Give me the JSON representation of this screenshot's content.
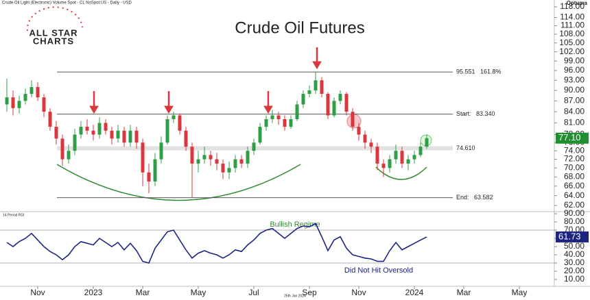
{
  "chart_data": {
    "type": "candlestick",
    "title": "Crude Oil Futures",
    "subtitle": "Crude Oil Light (Electronic) Volume Spot - CL NoSpot:US - Daily - USD",
    "logo": [
      "ALL STAR",
      "CHARTS"
    ],
    "brand": "Optuma",
    "footer": "26th Jan 2024",
    "categories": [
      null,
      null,
      null,
      null,
      null,
      "Nov",
      null,
      null,
      null,
      null,
      null,
      null,
      null,
      null,
      "2023",
      null,
      null,
      null,
      null,
      null,
      null,
      null,
      "Mar",
      null,
      null,
      null,
      null,
      null,
      null,
      null,
      null,
      "May",
      null,
      null,
      null,
      null,
      null,
      null,
      null,
      null,
      "Jul",
      null,
      null,
      null,
      null,
      null,
      null,
      null,
      null,
      "Sep",
      null,
      null,
      null,
      null,
      null,
      null,
      null,
      "Nov",
      null,
      null,
      null,
      null,
      null,
      null,
      null,
      null,
      "2024",
      null,
      null,
      null,
      null,
      null,
      null,
      null,
      "Mar",
      null,
      null,
      null,
      null,
      null,
      null,
      null,
      null,
      "May",
      null,
      null,
      null,
      null
    ],
    "open": [
      86,
      88,
      85,
      87,
      89,
      91,
      88,
      84,
      80,
      77,
      72,
      74,
      78,
      80,
      79,
      78,
      81,
      79,
      77,
      79,
      76,
      79,
      76,
      69,
      67,
      72,
      76,
      82,
      83,
      79,
      75,
      71,
      72,
      73,
      72,
      71,
      69,
      70,
      72,
      71,
      74,
      76,
      80,
      82,
      83,
      82,
      80,
      82,
      86,
      89,
      90,
      93,
      89,
      83,
      87,
      89,
      84,
      80,
      78,
      76,
      75,
      71,
      70,
      72,
      74,
      71,
      72,
      73,
      75,
      null,
      null,
      null,
      null,
      null,
      null,
      null,
      null,
      null,
      null,
      null,
      null,
      null,
      null,
      null,
      null,
      null,
      null,
      null
    ],
    "high": [
      93.5,
      90,
      88.5,
      90.5,
      93,
      92.5,
      89,
      85,
      81.5,
      78,
      75.5,
      79.5,
      81.5,
      82,
      80.5,
      82.5,
      82,
      80,
      80.5,
      80,
      80.5,
      80,
      77,
      71,
      73.5,
      77.5,
      83,
      84,
      83.5,
      80,
      76,
      74,
      75,
      74,
      73.5,
      72,
      71.5,
      73,
      73,
      75,
      77,
      81,
      83,
      84.5,
      84,
      83,
      83,
      87,
      90,
      91.5,
      95.5,
      94,
      89.5,
      88,
      90,
      89.5,
      85,
      81,
      79,
      77,
      76,
      72,
      73,
      75.5,
      75,
      73,
      74,
      76,
      78,
      null,
      null,
      null,
      null,
      null,
      null,
      null,
      null,
      null,
      null,
      null,
      null,
      null,
      null,
      null,
      null,
      null,
      null,
      null
    ],
    "low": [
      84,
      83,
      83.5,
      86,
      88,
      87,
      82.5,
      79,
      75.5,
      70.5,
      71,
      73,
      77,
      78,
      76.5,
      77,
      78,
      75.5,
      76,
      75,
      75,
      74.5,
      66,
      64.5,
      66,
      71,
      75.5,
      81,
      78,
      74,
      63.6,
      69,
      71,
      70.5,
      69.5,
      67.5,
      67.5,
      69,
      70,
      70,
      73,
      75.5,
      79,
      81,
      80.5,
      79,
      79.5,
      81.5,
      85,
      88,
      89,
      88,
      82,
      82.5,
      86,
      83,
      79,
      76.5,
      74.5,
      73.5,
      69.5,
      68,
      69,
      71,
      70,
      69.5,
      71,
      72.5,
      74.5,
      null,
      null,
      null,
      null,
      null,
      null,
      null,
      null,
      null,
      null,
      null,
      null,
      null,
      null,
      null,
      null,
      null,
      null,
      null
    ],
    "close": [
      88,
      85,
      87,
      89,
      91,
      88,
      84,
      80,
      77,
      72,
      74,
      78,
      80,
      79,
      78,
      81,
      79,
      77,
      79,
      76,
      79,
      76,
      69,
      67,
      72,
      76,
      82,
      83,
      79,
      75,
      71,
      72,
      73,
      72,
      71,
      69,
      70,
      72,
      71,
      74,
      76,
      80,
      82,
      83,
      82,
      80,
      82,
      86,
      89,
      90,
      93,
      89,
      83,
      87,
      89,
      84,
      80,
      78,
      76,
      75,
      71,
      70,
      72,
      74,
      71,
      72,
      73,
      75,
      77.1,
      null,
      null,
      null,
      null,
      null,
      null,
      null,
      null,
      null,
      null,
      null,
      null,
      null,
      null,
      null,
      null,
      null,
      null,
      null
    ],
    "up_color": "#2f9e44",
    "down_color": "#d9363e",
    "log_scale": true,
    "ylim": [
      60.9,
      120.65
    ],
    "yticks": [
      {
        "value": 118,
        "label": "118.00"
      },
      {
        "value": 114,
        "label": "114.00"
      },
      {
        "value": 111,
        "label": "111.00"
      },
      {
        "value": 108,
        "label": "108.00"
      },
      {
        "value": 105,
        "label": "105.00"
      },
      {
        "value": 102,
        "label": "102.00"
      },
      {
        "value": 99,
        "label": "99.00"
      },
      {
        "value": 96,
        "label": "96.00"
      },
      {
        "value": 93,
        "label": "93.00"
      },
      {
        "value": 90,
        "label": "90.00"
      },
      {
        "value": 87,
        "label": "87.00"
      },
      {
        "value": 84,
        "label": "84.00"
      },
      {
        "value": 81,
        "label": "81.00"
      },
      {
        "value": 78,
        "label": "78.00"
      },
      {
        "value": 76,
        "label": "76.00"
      },
      {
        "value": 74,
        "label": "74.00"
      },
      {
        "value": 72,
        "label": "72.00"
      },
      {
        "value": 70,
        "label": "70.00"
      },
      {
        "value": 68,
        "label": "68.00"
      },
      {
        "value": 66,
        "label": "66.00"
      },
      {
        "value": 64,
        "label": "64.00"
      },
      {
        "value": 62,
        "label": "62.00"
      }
    ],
    "levels": [
      {
        "value": 95.551,
        "label": "95.551   161.8%",
        "color": "#555"
      },
      {
        "value": 83.34,
        "label": "Start:   83.340",
        "color": "#555"
      },
      {
        "value": 74.61,
        "label": "74.610",
        "color": "#e2e2e2"
      },
      {
        "value": 63.582,
        "label": "End:   63.582",
        "color": "#555"
      }
    ],
    "price_badge": {
      "value": 77.1,
      "label": "77.10",
      "color": "#1f8f2f"
    },
    "rsi": {
      "title": "14 Period RSI",
      "color": "#1c2380",
      "values": [
        55,
        50,
        56,
        60,
        66,
        58,
        50,
        44,
        40,
        34,
        40,
        50,
        56,
        54,
        52,
        60,
        55,
        50,
        55,
        46,
        54,
        45,
        32,
        30,
        48,
        58,
        68,
        70,
        58,
        46,
        36,
        42,
        45,
        42,
        40,
        36,
        40,
        46,
        44,
        52,
        58,
        66,
        70,
        72,
        66,
        60,
        66,
        72,
        75,
        74,
        78,
        62,
        45,
        58,
        62,
        48,
        40,
        38,
        36,
        35,
        32,
        32,
        45,
        55,
        46,
        50,
        54,
        58,
        61.73,
        null,
        null,
        null,
        null,
        null,
        null,
        null,
        null,
        null,
        null,
        null,
        null,
        null,
        null,
        null,
        null,
        null,
        null,
        null
      ],
      "ylim": [
        1.67,
        91.67
      ],
      "yticks": [
        {
          "value": 90,
          "label": "90.00"
        },
        {
          "value": 80,
          "label": "80.00"
        },
        {
          "value": 70,
          "label": "70.00"
        },
        {
          "value": 60,
          "label": "60.00"
        },
        {
          "value": 50,
          "label": "50.00"
        },
        {
          "value": 40,
          "label": "40.00"
        },
        {
          "value": 30,
          "label": "30.00"
        },
        {
          "value": 20,
          "label": "20.00"
        },
        {
          "value": 10,
          "label": "10.00"
        }
      ],
      "levels": [
        70,
        30
      ],
      "badge": {
        "value": 61.73,
        "label": "61.73",
        "color": "#1c2380"
      },
      "annotations": [
        "Bullish Regime",
        "Did Not Hit Oversold"
      ]
    }
  }
}
